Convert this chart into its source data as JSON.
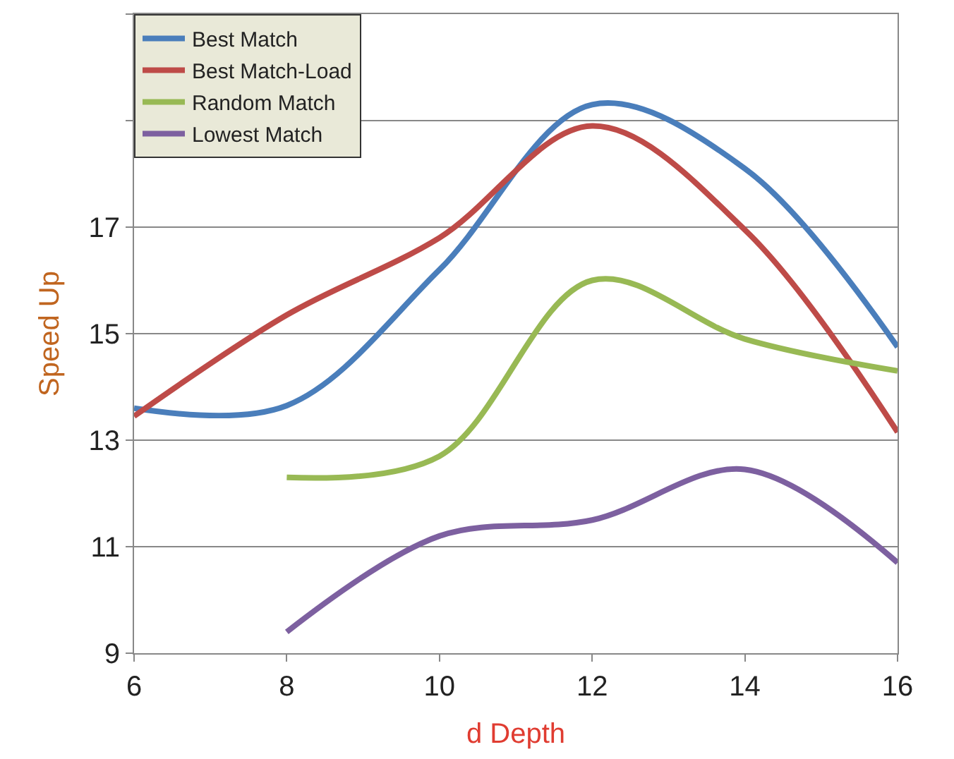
{
  "chart_data": {
    "type": "line",
    "xlabel": "d Depth",
    "ylabel": "Speed Up",
    "x": [
      6,
      8,
      10,
      12,
      14,
      16
    ],
    "series": [
      {
        "name": "Best Match",
        "color": "#4a7ebb",
        "values": [
          13.6,
          13.65,
          16.2,
          19.3,
          18.1,
          14.75
        ]
      },
      {
        "name": "Best Match-Load",
        "color": "#be4b48",
        "values": [
          13.45,
          15.35,
          16.8,
          18.9,
          16.95,
          13.15
        ]
      },
      {
        "name": "Random Match",
        "color": "#98b954",
        "values": [
          null,
          12.3,
          12.7,
          16.0,
          14.9,
          14.3
        ]
      },
      {
        "name": "Lowest Match",
        "color": "#7d60a0",
        "values": [
          null,
          9.4,
          11.2,
          11.5,
          12.45,
          10.7
        ]
      }
    ],
    "xlim": [
      6,
      16
    ],
    "xticks": [
      6,
      8,
      10,
      12,
      14,
      16
    ],
    "ylim": [
      9,
      21
    ],
    "yticks": [
      9,
      11,
      13,
      15,
      17,
      {
        "value": 19,
        "label": null
      },
      {
        "value": 21,
        "label": null
      }
    ],
    "grid": "y",
    "legend": "top left",
    "marker": "none",
    "line_style": "solid"
  }
}
